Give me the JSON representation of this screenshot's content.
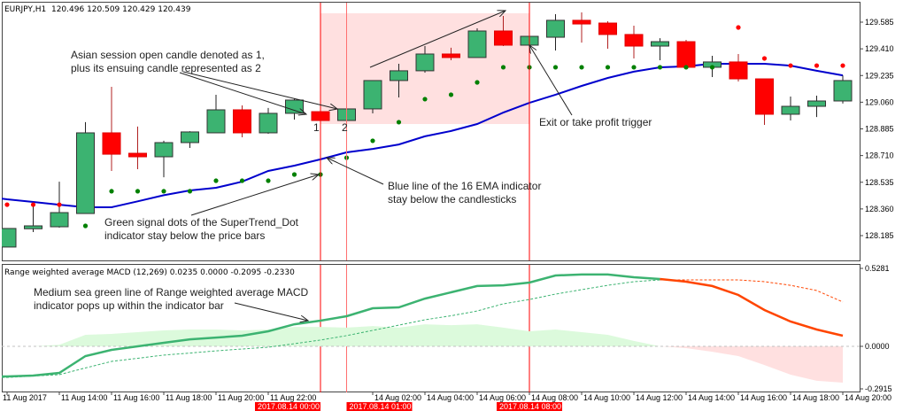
{
  "header": {
    "text": "EURJPY,H1  120.496 120.509 120.429 120.439"
  },
  "indicator_header": {
    "text": "Range weighted average MACD (12,269) 0.0235 0.0000 -0.2095 -0.2330"
  },
  "colors": {
    "bull": "#3cb371",
    "bear": "#ff0000",
    "ema": "#0000cd",
    "dot_up": "#008000",
    "dot_down": "#ff0000",
    "macd_up": "#3cb371",
    "macd_down": "#ff4500",
    "hist_pos": "#dcfadc",
    "hist_neg": "#ffe0e0",
    "region": "#ffe0e0",
    "vline": "#ff0000",
    "vline_light": "#ff7070",
    "highlight": "#ff0000"
  },
  "annotations": {
    "asian_line1": "Asian session open candle denoted as 1,",
    "asian_line2": "plus its ensuing candle represented as 2",
    "exit": "Exit or take profit trigger",
    "ema_line1": "Blue line of the 16 EMA indicator",
    "ema_line2": "stay below the candlesticks",
    "dots_line1": "Green signal dots of the SuperTrend_Dot",
    "dots_line2": "indicator stay below the price bars",
    "macd_line1": "Medium sea green line of Range weighted average MACD",
    "macd_line2": "indicator pops up within the indicator bar",
    "candle1": "1",
    "candle2": "2"
  },
  "chart_data": [
    {
      "type": "candlestick",
      "symbol": "EURJPY",
      "timeframe": "H1",
      "x": [
        "2017-08-11 12:00",
        "2017-08-11 13:00",
        "2017-08-11 14:00",
        "2017-08-11 15:00",
        "2017-08-11 16:00",
        "2017-08-11 17:00",
        "2017-08-11 18:00",
        "2017-08-11 19:00",
        "2017-08-11 20:00",
        "2017-08-11 21:00",
        "2017-08-11 22:00",
        "2017-08-11 23:00",
        "2017-08-14 00:00",
        "2017-08-14 01:00",
        "2017-08-14 02:00",
        "2017-08-14 03:00",
        "2017-08-14 04:00",
        "2017-08-14 05:00",
        "2017-08-14 06:00",
        "2017-08-14 07:00",
        "2017-08-14 08:00",
        "2017-08-14 09:00",
        "2017-08-14 10:00",
        "2017-08-14 11:00",
        "2017-08-14 12:00",
        "2017-08-14 13:00",
        "2017-08-14 14:00",
        "2017-08-14 15:00",
        "2017-08-14 16:00",
        "2017-08-14 17:00",
        "2017-08-14 18:00",
        "2017-08-14 19:00",
        "2017-08-14 20:00"
      ],
      "open": [
        128.11,
        128.23,
        128.243,
        128.33,
        128.859,
        128.725,
        128.702,
        128.795,
        128.859,
        129.01,
        128.859,
        128.987,
        128.998,
        128.94,
        129.016,
        129.202,
        129.266,
        129.376,
        129.353,
        129.527,
        129.434,
        129.486,
        129.597,
        129.579,
        129.504,
        129.428,
        129.457,
        129.289,
        129.324,
        129.213,
        128.981,
        129.033,
        129.068
      ],
      "high": [
        128.232,
        128.383,
        128.539,
        128.929,
        129.161,
        128.9,
        128.807,
        128.87,
        129.109,
        129.039,
        129.022,
        129.085,
        128.998,
        129.016,
        129.202,
        129.312,
        129.428,
        129.417,
        129.544,
        129.626,
        129.492,
        129.637,
        129.649,
        129.591,
        129.562,
        129.48,
        129.469,
        129.364,
        129.376,
        129.213,
        129.097,
        129.103,
        129.236
      ],
      "low": [
        128.11,
        128.208,
        128.237,
        128.33,
        128.609,
        128.621,
        128.568,
        128.76,
        128.859,
        128.83,
        128.853,
        128.946,
        128.94,
        128.94,
        128.987,
        129.091,
        129.254,
        129.335,
        129.353,
        129.428,
        129.434,
        129.399,
        129.451,
        129.411,
        129.347,
        129.335,
        129.289,
        129.225,
        129.196,
        128.911,
        128.94,
        128.963,
        129.051
      ],
      "close": [
        128.232,
        128.249,
        128.336,
        128.859,
        128.719,
        128.702,
        128.795,
        128.865,
        129.01,
        128.859,
        128.987,
        129.074,
        128.94,
        129.016,
        129.202,
        129.266,
        129.376,
        129.353,
        129.527,
        129.434,
        129.492,
        129.597,
        129.573,
        129.504,
        129.428,
        129.457,
        129.289,
        129.324,
        129.213,
        128.981,
        129.033,
        129.068,
        129.202
      ],
      "ema16": [
        128.423,
        128.406,
        128.388,
        128.371,
        128.371,
        128.41,
        128.45,
        128.481,
        128.499,
        128.539,
        128.609,
        128.644,
        128.685,
        128.731,
        128.754,
        128.783,
        128.836,
        128.871,
        128.917,
        128.992,
        129.056,
        129.109,
        129.167,
        129.219,
        129.26,
        129.289,
        129.295,
        129.312,
        129.312,
        129.312,
        129.3,
        129.266,
        129.236
      ],
      "supertrend_dot": {
        "values": [
          128.388,
          128.388,
          128.388,
          128.249,
          128.476,
          128.476,
          128.476,
          128.476,
          128.545,
          128.545,
          128.545,
          128.586,
          128.586,
          128.696,
          128.807,
          128.929,
          129.08,
          129.109,
          129.19,
          129.289,
          129.289,
          129.289,
          129.289,
          129.289,
          129.289,
          129.289,
          129.289,
          129.289,
          129.55,
          129.347,
          129.3,
          129.3,
          129.3
        ],
        "trend": [
          "down",
          "down",
          "down",
          "up",
          "up",
          "up",
          "up",
          "up",
          "up",
          "up",
          "up",
          "up",
          "up",
          "up",
          "up",
          "up",
          "up",
          "up",
          "up",
          "up",
          "up",
          "up",
          "up",
          "up",
          "up",
          "up",
          "up",
          "up",
          "down",
          "down",
          "down",
          "down",
          "down"
        ]
      },
      "ylim": [
        128.1,
        129.66
      ],
      "y_ticks": [
        "129.585",
        "129.410",
        "129.235",
        "129.060",
        "128.885",
        "128.710",
        "128.535",
        "128.360",
        "128.185"
      ],
      "x_ticks": [
        {
          "at": "2017-08-11 12:00",
          "label": "11 Aug 2017"
        },
        {
          "at": "2017-08-11 14:00",
          "label": "11 Aug 14:00"
        },
        {
          "at": "2017-08-11 16:00",
          "label": "11 Aug 16:00"
        },
        {
          "at": "2017-08-11 18:00",
          "label": "11 Aug 18:00"
        },
        {
          "at": "2017-08-11 20:00",
          "label": "11 Aug 20:00"
        },
        {
          "at": "2017-08-11 22:00",
          "label": "11 Aug 22:00"
        },
        {
          "at": "2017-08-14 02:00",
          "label": "14 Aug 02:00"
        },
        {
          "at": "2017-08-14 04:00",
          "label": "14 Aug 04:00"
        },
        {
          "at": "2017-08-14 06:00",
          "label": "14 Aug 06:00"
        },
        {
          "at": "2017-08-14 08:00",
          "label": "14 Aug 08:00"
        },
        {
          "at": "2017-08-14 10:00",
          "label": "14 Aug 10:00"
        },
        {
          "at": "2017-08-14 12:00",
          "label": "14 Aug 12:00"
        },
        {
          "at": "2017-08-14 14:00",
          "label": "14 Aug 14:00"
        },
        {
          "at": "2017-08-14 16:00",
          "label": "14 Aug 16:00"
        },
        {
          "at": "2017-08-14 18:00",
          "label": "14 Aug 18:00"
        },
        {
          "at": "2017-08-14 20:00",
          "label": "14 Aug 20:00"
        }
      ],
      "vertical_lines": [
        {
          "at": "2017-08-14 00:00",
          "style": "solid"
        },
        {
          "at": "2017-08-14 01:00",
          "style": "light"
        },
        {
          "at": "2017-08-14 08:00",
          "style": "solid"
        }
      ],
      "time_highlights": [
        {
          "at": "2017-08-14 00:00",
          "label": "2017.08.14 00:00"
        },
        {
          "at": "2017-08-14 01:00",
          "label": "2017.08.14 01:00"
        },
        {
          "at": "2017-08-14 08:00",
          "label": "2017.08.14 08:00"
        }
      ],
      "shaded_region": {
        "from": "2017-08-14 00:00",
        "to": "2017-08-14 08:00",
        "price_low": 128.917,
        "price_high": 129.643
      }
    },
    {
      "type": "line",
      "title": "Range weighted average MACD (12,269)",
      "main": [
        -0.202,
        -0.196,
        -0.178,
        -0.065,
        -0.024,
        0.0,
        0.024,
        0.047,
        0.059,
        0.071,
        0.101,
        0.148,
        0.172,
        0.202,
        0.255,
        0.261,
        0.32,
        0.362,
        0.404,
        0.409,
        0.427,
        0.475,
        0.481,
        0.481,
        0.463,
        0.451,
        0.433,
        0.404,
        0.344,
        0.243,
        0.166,
        0.113,
        0.071
      ],
      "signal": [
        -0.208,
        -0.199,
        -0.19,
        -0.145,
        -0.101,
        -0.08,
        -0.059,
        -0.045,
        -0.03,
        -0.018,
        -0.006,
        0.018,
        0.042,
        0.072,
        0.107,
        0.142,
        0.178,
        0.205,
        0.237,
        0.285,
        0.314,
        0.35,
        0.38,
        0.409,
        0.433,
        0.445,
        0.445,
        0.445,
        0.445,
        0.433,
        0.409,
        0.374,
        0.297
      ],
      "histogram": [
        0.0,
        0.0,
        0.01,
        0.077,
        0.083,
        0.095,
        0.107,
        0.113,
        0.113,
        0.107,
        0.113,
        0.13,
        0.13,
        0.125,
        0.136,
        0.125,
        0.148,
        0.142,
        0.148,
        0.125,
        0.101,
        0.113,
        0.095,
        0.077,
        0.036,
        0.0,
        -0.012,
        -0.036,
        -0.065,
        -0.125,
        -0.19,
        -0.231,
        -0.243
      ],
      "color_switch_at": "2017-08-14 13:00",
      "ylim": [
        -0.2915,
        0.5281
      ],
      "y_ticks": [
        "0.5281",
        "0.0000",
        "-0.2915"
      ]
    }
  ]
}
